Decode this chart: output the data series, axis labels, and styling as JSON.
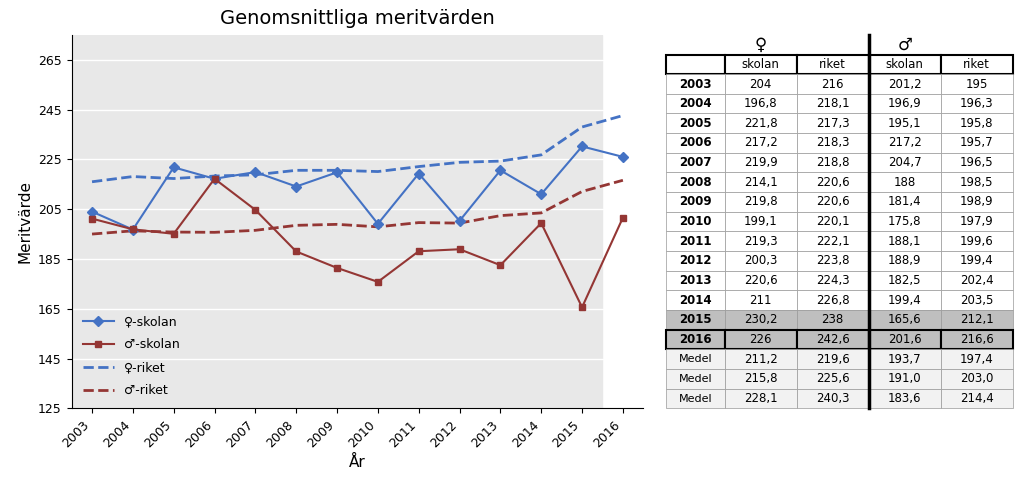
{
  "title": "Genomsnittliga meritvärden",
  "years": [
    2003,
    2004,
    2005,
    2006,
    2007,
    2008,
    2009,
    2010,
    2011,
    2012,
    2013,
    2014,
    2015,
    2016
  ],
  "girl_skolan": [
    204,
    196.8,
    221.8,
    217.2,
    219.9,
    214.1,
    219.8,
    199.1,
    219.3,
    200.3,
    220.6,
    211,
    230.2,
    226
  ],
  "boy_skolan": [
    201.2,
    196.9,
    195.1,
    217.2,
    204.7,
    188,
    181.4,
    175.8,
    188.1,
    188.9,
    182.5,
    199.4,
    165.6,
    201.6
  ],
  "girl_riket": [
    216,
    218.1,
    217.3,
    218.3,
    218.8,
    220.6,
    220.6,
    220.1,
    222.1,
    223.8,
    224.3,
    226.8,
    238,
    242.6
  ],
  "boy_riket": [
    195,
    196.3,
    195.8,
    195.7,
    196.5,
    198.5,
    198.9,
    197.9,
    199.6,
    199.4,
    202.4,
    203.5,
    212.1,
    216.6
  ],
  "ylabel": "Meritvärde",
  "xlabel": "År",
  "ylim": [
    125,
    275
  ],
  "yticks": [
    125,
    145,
    165,
    185,
    205,
    225,
    245,
    265
  ],
  "girl_color": "#4472C4",
  "boy_color": "#943634",
  "table_data": {
    "years_bold": [
      "2003",
      "2004",
      "2005",
      "2006",
      "2007",
      "2008",
      "2009",
      "2010",
      "2011",
      "2012",
      "2013",
      "2014",
      "2015",
      "2016"
    ],
    "girl_skolan": [
      "204",
      "196,8",
      "221,8",
      "217,2",
      "219,9",
      "214,1",
      "219,8",
      "199,1",
      "219,3",
      "200,3",
      "220,6",
      "211",
      "230,2",
      "226"
    ],
    "girl_riket": [
      "216",
      "218,1",
      "217,3",
      "218,3",
      "218,8",
      "220,6",
      "220,6",
      "220,1",
      "222,1",
      "223,8",
      "224,3",
      "226,8",
      "238",
      "242,6"
    ],
    "boy_skolan": [
      "201,2",
      "196,9",
      "195,1",
      "217,2",
      "204,7",
      "188",
      "181,4",
      "175,8",
      "188,1",
      "188,9",
      "182,5",
      "199,4",
      "165,6",
      "201,6"
    ],
    "boy_riket": [
      "195",
      "196,3",
      "195,8",
      "195,7",
      "196,5",
      "198,5",
      "198,9",
      "197,9",
      "199,6",
      "199,4",
      "202,4",
      "203,5",
      "212,1",
      "216,6"
    ],
    "medel_rows": [
      [
        "Medel",
        "211,2",
        "219,6",
        "193,7",
        "197,4"
      ],
      [
        "Medel",
        "215,8",
        "225,6",
        "191,0",
        "203,0"
      ],
      [
        "Medel",
        "228,1",
        "240,3",
        "183,6",
        "214,4"
      ]
    ],
    "shaded_row_indices": [
      12,
      13
    ]
  }
}
